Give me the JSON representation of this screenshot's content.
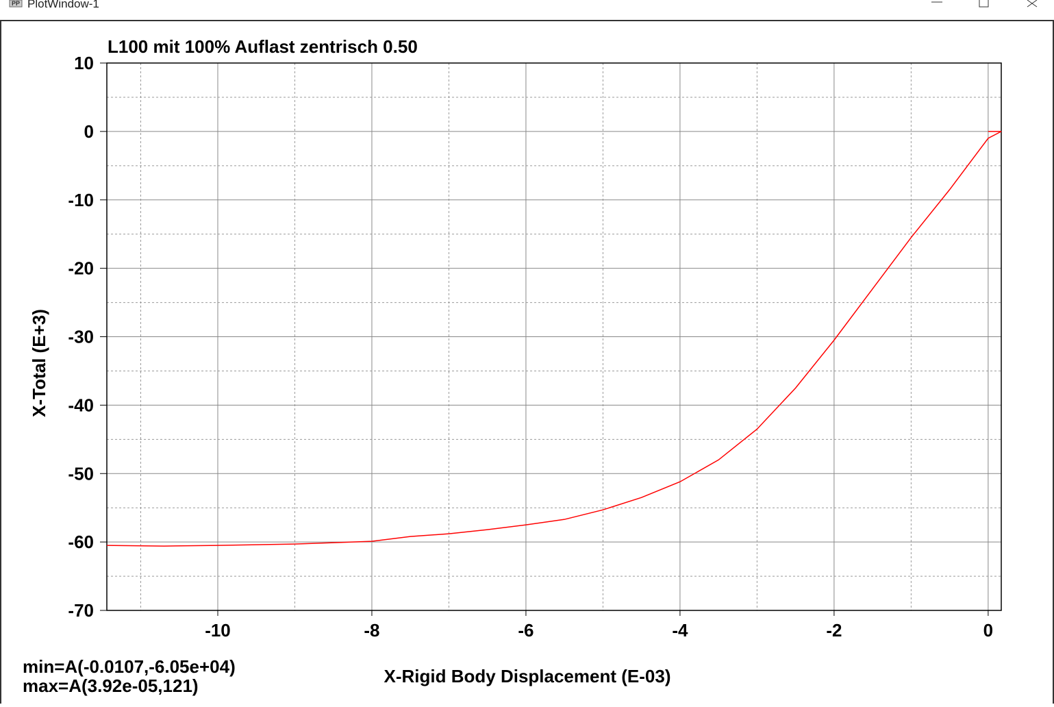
{
  "window_title": "PlotWindow-1",
  "window_icon": "PP",
  "chart_data": {
    "type": "line",
    "title": "L100 mit 100% Auflast zentrisch 0.50",
    "xlabel": "X-Rigid Body Displacement (E-03)",
    "ylabel": "X-Total (E+3)",
    "annotations": [
      "min=A(-0.0107,-6.05e+04)",
      "max=A(3.92e-05,121)"
    ],
    "xlim": [
      -11.44,
      0.17
    ],
    "ylim": [
      -70,
      10
    ],
    "xticks": [
      -10,
      -8,
      -6,
      -4,
      -2,
      0
    ],
    "yticks": [
      10,
      0,
      -10,
      -20,
      -30,
      -40,
      -50,
      -60,
      -70
    ],
    "xminor": [
      -11,
      -9,
      -7,
      -5,
      -3,
      -1
    ],
    "yminor": [
      5,
      -5,
      -15,
      -25,
      -35,
      -45,
      -55,
      -65
    ],
    "grid": true,
    "series": [
      {
        "color": "#ff0000",
        "x": [
          -11.44,
          -10.7,
          -10,
          -9,
          -8,
          -7.5,
          -7,
          -6.5,
          -6,
          -5.5,
          -5,
          -4.5,
          -4,
          -3.5,
          -3,
          -2.5,
          -2,
          -1.5,
          -1,
          -0.5,
          -0.1,
          0,
          0.17,
          0
        ],
        "values": [
          -60.5,
          -60.6,
          -60.5,
          -60.3,
          -59.9,
          -59.2,
          -58.8,
          -58.2,
          -57.5,
          -56.7,
          -55.3,
          -53.5,
          -51.2,
          -48,
          -43.5,
          -37.5,
          -30.5,
          -23,
          -15.5,
          -8.5,
          -2.5,
          -1,
          0,
          0
        ]
      }
    ]
  }
}
